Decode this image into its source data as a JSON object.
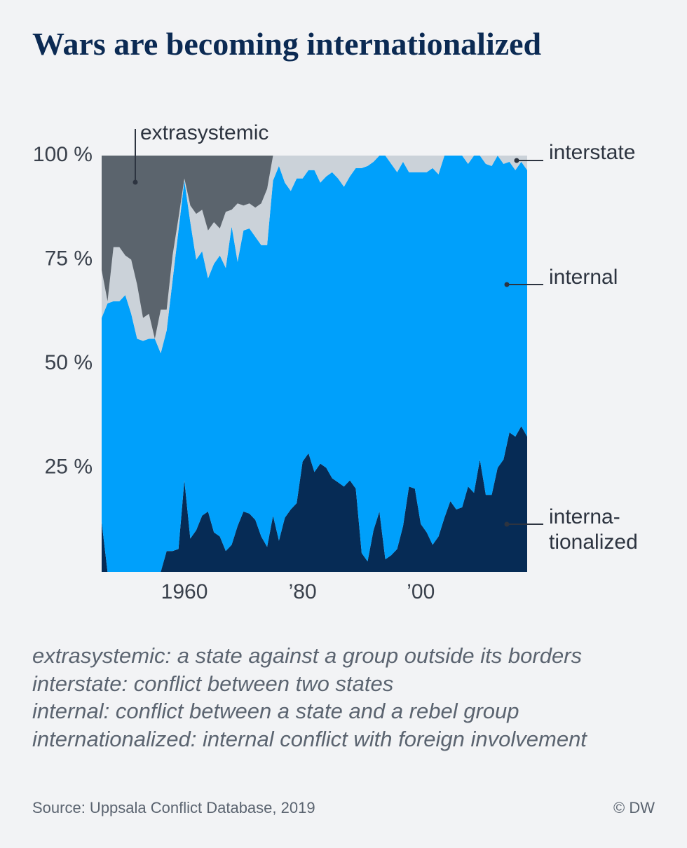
{
  "chart_data": {
    "type": "stacked-area",
    "title": "Wars are becoming internationalized",
    "x": [
      1946,
      1947,
      1948,
      1949,
      1950,
      1951,
      1952,
      1953,
      1954,
      1955,
      1956,
      1957,
      1958,
      1959,
      1960,
      1961,
      1962,
      1963,
      1964,
      1965,
      1966,
      1967,
      1968,
      1969,
      1970,
      1971,
      1972,
      1973,
      1974,
      1975,
      1976,
      1977,
      1978,
      1979,
      1980,
      1981,
      1982,
      1983,
      1984,
      1985,
      1986,
      1987,
      1988,
      1989,
      1990,
      1991,
      1992,
      1993,
      1994,
      1995,
      1996,
      1997,
      1998,
      1999,
      2000,
      2001,
      2002,
      2003,
      2004,
      2005,
      2006,
      2007,
      2008,
      2009,
      2010,
      2011,
      2012,
      2013,
      2014,
      2015,
      2016,
      2017,
      2018
    ],
    "series": [
      {
        "name": "interna-\ntionalized",
        "color": "#062b55",
        "values": [
          12,
          0,
          0,
          0,
          0,
          0,
          0,
          0,
          0,
          0,
          0,
          5,
          5,
          5.5,
          22,
          8,
          10,
          13.5,
          14.5,
          9.5,
          8.5,
          5,
          6.5,
          11,
          14.5,
          14,
          12.5,
          8.5,
          6,
          13.5,
          7.5,
          13,
          15,
          16.5,
          26.5,
          28.5,
          24,
          26,
          25,
          22.5,
          21.5,
          20.5,
          22,
          20,
          4.5,
          2.5,
          10,
          14.5,
          3,
          4,
          5.5,
          11,
          20.5,
          20,
          11.5,
          9.5,
          6.5,
          8.5,
          13,
          17,
          15,
          15.5,
          20.5,
          19,
          27,
          18.5,
          18.5,
          25,
          27,
          33.5,
          32.5,
          35,
          32.5
        ]
      },
      {
        "name": "internal",
        "color": "#00a0fb",
        "values": [
          49,
          64.5,
          65,
          65,
          66.5,
          62,
          56,
          55.5,
          56,
          56,
          52.5,
          53,
          65,
          76.5,
          72,
          76,
          65,
          63.5,
          56,
          64.5,
          67.5,
          68,
          76.5,
          63.5,
          67.5,
          68.5,
          68,
          70,
          72.5,
          80.5,
          90,
          80.5,
          76.5,
          78,
          68,
          68,
          72.5,
          67.5,
          70,
          73.5,
          73,
          72,
          73,
          77,
          92.5,
          95,
          88.5,
          85.5,
          97,
          94,
          90.5,
          87.5,
          75.5,
          76,
          84.5,
          86.5,
          90.5,
          87,
          87,
          83,
          85,
          84.5,
          77.5,
          81,
          73,
          79.5,
          79,
          75,
          71,
          65,
          64,
          63.5,
          64
        ]
      },
      {
        "name": "interstate",
        "color": "#cbd2d9",
        "values": [
          11.5,
          0.5,
          13,
          13,
          9.5,
          13,
          13,
          5.5,
          6,
          0,
          10.5,
          5,
          6,
          3,
          0.5,
          4,
          11,
          10,
          11.5,
          10,
          6.5,
          13.5,
          4,
          14,
          6,
          6,
          7,
          10,
          13.5,
          6,
          2.5,
          6.5,
          8.5,
          5.5,
          5.5,
          3.5,
          3.5,
          6.5,
          5,
          4,
          5.5,
          7.5,
          5,
          3,
          3,
          2.5,
          1.5,
          0,
          0,
          2,
          4,
          1.5,
          4,
          4,
          4,
          4,
          3,
          4.5,
          0,
          0,
          0,
          0,
          2,
          0,
          0,
          2,
          2.5,
          0,
          2,
          1.5,
          3.5,
          1.5,
          3.5
        ]
      },
      {
        "name": "extrasystemic",
        "color": "#5b646d",
        "values": [
          27.5,
          35,
          22,
          22,
          24,
          25,
          31,
          39,
          38,
          44,
          37,
          37,
          24,
          15,
          5.5,
          12,
          14,
          13,
          18,
          16,
          17.5,
          13.5,
          13,
          11.5,
          12,
          11.5,
          12.5,
          11.5,
          8,
          0,
          0,
          0,
          0,
          0,
          0,
          0,
          0,
          0,
          0,
          0,
          0,
          0,
          0,
          0,
          0,
          0,
          0,
          0,
          0,
          0,
          0,
          0,
          0,
          0,
          0,
          0,
          0,
          0,
          0,
          0,
          0,
          0,
          0,
          0,
          0,
          0,
          0,
          0,
          0,
          0,
          0,
          0,
          0
        ]
      }
    ],
    "xlim": [
      1946,
      2018
    ],
    "xticks": [
      1960,
      {
        "value": 1980,
        "label": "’80"
      },
      {
        "value": 2000,
        "label": "’00"
      }
    ],
    "ylim": [
      0,
      100
    ],
    "yticks": [
      {
        "value": 25,
        "label": "25 %"
      },
      {
        "value": 50,
        "label": "50 %"
      },
      {
        "value": 75,
        "label": "75 %"
      },
      {
        "value": 100,
        "label": "100 %"
      }
    ],
    "notes": [
      "extrasystemic: a state against a group outside its borders",
      "interstate: conflict between two states",
      "internal: conflict between a state and a rebel group",
      "internationalized: internal conflict with foreign involvement"
    ],
    "source": "Source: Uppsala Conflict Database, 2019",
    "credit": "© DW"
  }
}
